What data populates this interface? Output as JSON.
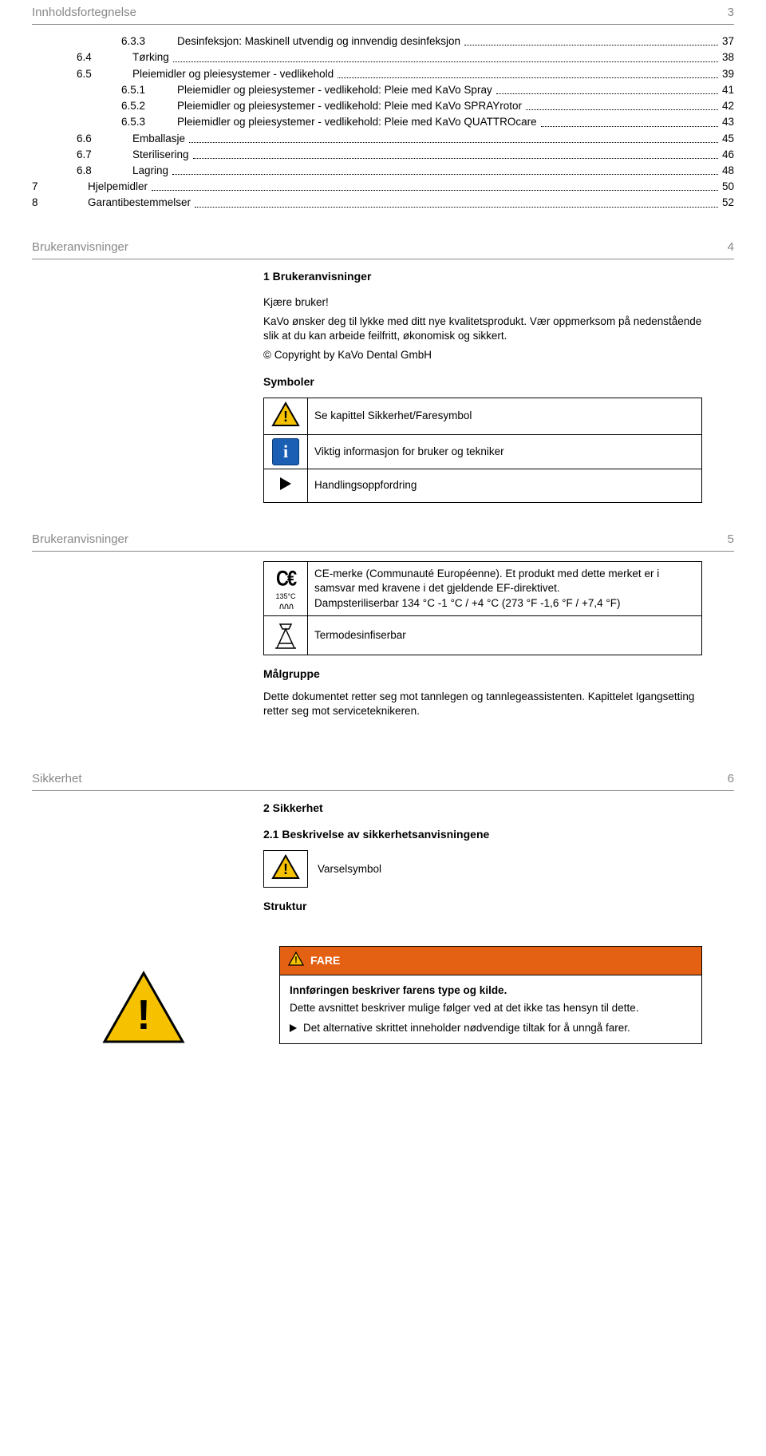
{
  "colors": {
    "text": "#000000",
    "mutedText": "#888888",
    "background": "#ffffff",
    "ruleLine": "#888888",
    "fareBg": "#e46113",
    "fareText": "#ffffff",
    "warnYellow": "#f6c200",
    "infoBlue": "#1a5fb4"
  },
  "typography": {
    "bodyFontSizePx": 13.5,
    "headerFontSizePx": 15,
    "headingFontSizePx": 14,
    "fontFamily": "Arial, Helvetica, sans-serif"
  },
  "pages": [
    {
      "header": "Innholdsfortegnelse",
      "num": "3"
    },
    {
      "header": "Brukeranvisninger",
      "num": "4"
    },
    {
      "header": "Brukeranvisninger",
      "num": "5"
    },
    {
      "header": "Sikkerhet",
      "num": "6"
    }
  ],
  "toc": [
    {
      "indent": 3,
      "num": "6.3.3",
      "label": "Desinfeksjon: Maskinell utvendig og innvendig desinfeksjon",
      "page": "37"
    },
    {
      "indent": 2,
      "num": "6.4",
      "label": "Tørking",
      "page": "38"
    },
    {
      "indent": 2,
      "num": "6.5",
      "label": "Pleiemidler og pleiesystemer - vedlikehold",
      "page": "39"
    },
    {
      "indent": 3,
      "num": "6.5.1",
      "label": "Pleiemidler og pleiesystemer - vedlikehold: Pleie med KaVo Spray",
      "page": "41"
    },
    {
      "indent": 3,
      "num": "6.5.2",
      "label": "Pleiemidler og pleiesystemer - vedlikehold: Pleie med KaVo SPRAYrotor",
      "page": "42"
    },
    {
      "indent": 3,
      "num": "6.5.3",
      "label": "Pleiemidler og pleiesystemer - vedlikehold: Pleie med KaVo QUATTROcare",
      "page": "43"
    },
    {
      "indent": 2,
      "num": "6.6",
      "label": "Emballasje",
      "page": "45"
    },
    {
      "indent": 2,
      "num": "6.7",
      "label": "Sterilisering",
      "page": "46"
    },
    {
      "indent": 2,
      "num": "6.8",
      "label": "Lagring",
      "page": "48"
    },
    {
      "indent": 1,
      "num": "7",
      "label": "Hjelpemidler",
      "page": "50"
    },
    {
      "indent": 1,
      "num": "8",
      "label": "Garantibestemmelser",
      "page": "52"
    }
  ],
  "page4": {
    "heading": "1  Brukeranvisninger",
    "greeting": "Kjære bruker!",
    "intro": "KaVo ønsker deg til lykke med ditt nye kvalitetsprodukt. Vær oppmerksom på nedenstående slik at du kan arbeide feilfritt, økonomisk og sikkert.",
    "copyright": "© Copyright by KaVo Dental GmbH",
    "symboler": "Symboler",
    "rows": [
      {
        "icon": "warn",
        "text": "Se kapittel Sikkerhet/Faresymbol"
      },
      {
        "icon": "info",
        "text": "Viktig informasjon for bruker og tekniker"
      },
      {
        "icon": "play",
        "text": "Handlingsoppfordring"
      }
    ]
  },
  "page5": {
    "rows": [
      {
        "icon": "ce135",
        "text": "CE-merke (Communauté Européenne). Et produkt med dette merket er i samsvar med kravene i det gjeldende EF-direktivet.\nDampsteriliserbar 134 °C -1 °C / +4 °C (273 °F -1,6 °F / +7,4 °F)"
      },
      {
        "icon": "thermo",
        "text": "Termodesinfiserbar"
      }
    ],
    "malgruppe_h": "Målgruppe",
    "malgruppe_p": "Dette dokumentet retter seg mot tannlegen og tannlegeassistenten. Kapittelet Igangsetting retter seg mot serviceteknikeren."
  },
  "page6": {
    "heading": "2  Sikkerhet",
    "subheading": "2.1  Beskrivelse av sikkerhetsanvisningene",
    "varsel_label": "Varselsymbol",
    "struktur_h": "Struktur",
    "fare_label": "FARE",
    "fare_bold": "Innføringen beskriver farens type og kilde.",
    "fare_p": "Dette avsnittet beskriver mulige følger ved at det ikke tas hensyn til dette.",
    "fare_bullet": "Det alternative skrittet inneholder nødvendige tiltak for å unngå farer."
  }
}
